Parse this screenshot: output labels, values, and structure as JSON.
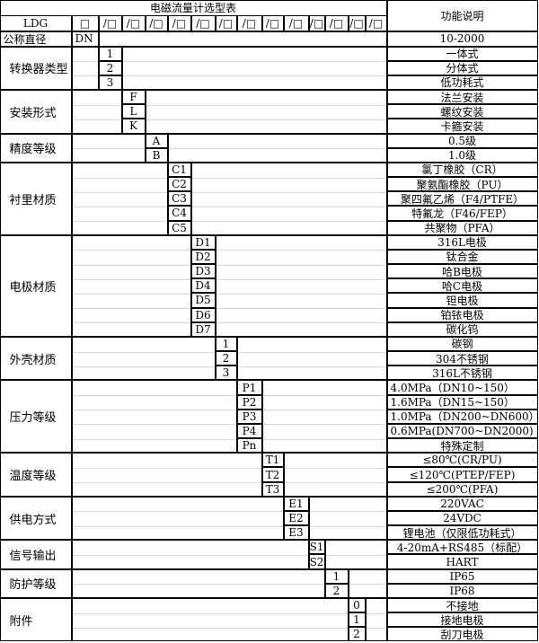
{
  "title": "电磁流量计选型表",
  "func_header": "功能说明",
  "header_row": {
    "model": "LDG",
    "first_box": "□",
    "slot": "/□",
    "slot_count": 13
  },
  "diameter": {
    "label": "公称直径",
    "code": "DN",
    "desc": "10-2000"
  },
  "groups": [
    {
      "label": "转换器类型",
      "options": [
        {
          "code": "1",
          "desc": "一体式"
        },
        {
          "code": "2",
          "desc": "分体式"
        },
        {
          "code": "3",
          "desc": "低功耗式"
        }
      ]
    },
    {
      "label": "安装形式",
      "options": [
        {
          "code": "F",
          "desc": "法兰安装"
        },
        {
          "code": "L",
          "desc": "螺纹安装"
        },
        {
          "code": "K",
          "desc": "卡箍安装"
        }
      ]
    },
    {
      "label": "精度等级",
      "options": [
        {
          "code": "A",
          "desc": "0.5级"
        },
        {
          "code": "B",
          "desc": "1.0级"
        }
      ]
    },
    {
      "label": "衬里材质",
      "options": [
        {
          "code": "C1",
          "desc": "氯丁橡胶（CR）"
        },
        {
          "code": "C2",
          "desc": "聚氨酯橡胶（PU）"
        },
        {
          "code": "C3",
          "desc": "聚四氟乙烯（F4/PTFE）"
        },
        {
          "code": "C4",
          "desc": "特氟龙（F46/FEP）"
        },
        {
          "code": "C5",
          "desc": "共聚物（PFA）"
        }
      ]
    },
    {
      "label": "电极材质",
      "options": [
        {
          "code": "D1",
          "desc": "316L电极"
        },
        {
          "code": "D2",
          "desc": "钛合金"
        },
        {
          "code": "D3",
          "desc": "哈B电极"
        },
        {
          "code": "D4",
          "desc": "哈C电极"
        },
        {
          "code": "D5",
          "desc": "钽电极"
        },
        {
          "code": "D6",
          "desc": "铂铱电极"
        },
        {
          "code": "D7",
          "desc": "碳化钨"
        }
      ]
    },
    {
      "label": "外壳材质",
      "options": [
        {
          "code": "1",
          "desc": "碳钢"
        },
        {
          "code": "2",
          "desc": "304不锈钢"
        },
        {
          "code": "3",
          "desc": "316L不锈钢"
        }
      ]
    },
    {
      "label": "压力等级",
      "desc_align": "left",
      "options": [
        {
          "code": "P1",
          "desc": "4.0MPa（DN10~150）"
        },
        {
          "code": "P2",
          "desc": "1.6MPa（DN15~150）"
        },
        {
          "code": "P3",
          "desc": "1.0MPa（DN200~DN600）"
        },
        {
          "code": "P4",
          "desc": "0.6MPa(DN700~DN2000)"
        },
        {
          "code": "Pn",
          "desc": "特殊定制",
          "center": true
        }
      ]
    },
    {
      "label": "温度等级",
      "options": [
        {
          "code": "T1",
          "desc": "≤80℃(CR/PU)"
        },
        {
          "code": "T2",
          "desc": "≤120℃(PTEP/FEP)"
        },
        {
          "code": "T3",
          "desc": "≤200℃(PFA)"
        }
      ]
    },
    {
      "label": "供电方式",
      "options": [
        {
          "code": "E1",
          "desc": "220VAC"
        },
        {
          "code": "E2",
          "desc": "24VDC"
        },
        {
          "code": "E3",
          "desc": "锂电池（仅限低功耗式）"
        }
      ]
    },
    {
      "label": "信号输出",
      "options": [
        {
          "code": "S1",
          "desc": "4-20mA+RS485（标配）"
        },
        {
          "code": "S2",
          "desc": "HART"
        }
      ]
    },
    {
      "label": "防护等级",
      "options": [
        {
          "code": "1",
          "desc": "IP65"
        },
        {
          "code": "2",
          "desc": "IP68"
        }
      ]
    },
    {
      "label": "附件",
      "options": [
        {
          "code": "0",
          "desc": "不接地"
        },
        {
          "code": "1",
          "desc": "接地电极"
        },
        {
          "code": "2",
          "desc": "刮刀电极"
        }
      ]
    }
  ]
}
